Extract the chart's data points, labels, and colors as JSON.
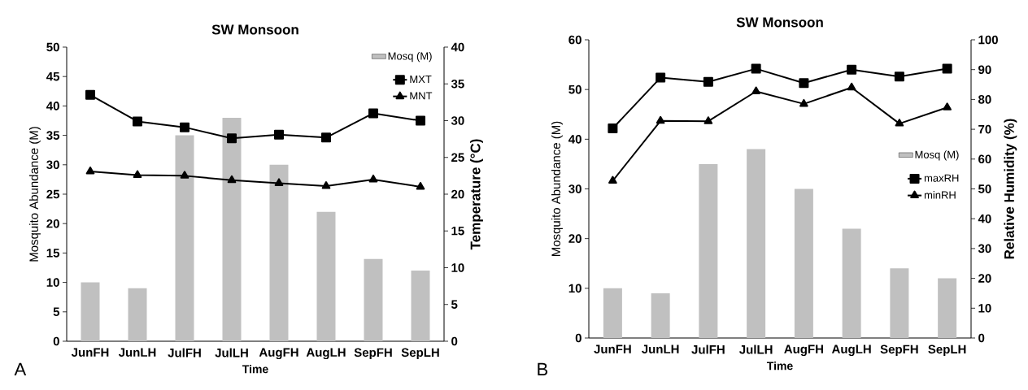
{
  "chart_data": [
    {
      "type": "bar",
      "title": "SW Monsoon",
      "xlabel": "Time",
      "ylabel": "Mosquito Abundance (M)",
      "y2label": "Temperature (°C)",
      "annotations": [
        "A"
      ],
      "legend": "top right",
      "categories": [
        "JunFH",
        "JunLH",
        "JulFH",
        "JulLH",
        "AugFH",
        "AugLH",
        "SepFH",
        "SepLH"
      ],
      "ylim": [
        0,
        50
      ],
      "yticks": [
        0,
        5,
        10,
        15,
        20,
        25,
        30,
        35,
        40,
        45,
        50
      ],
      "y2lim": [
        0,
        40
      ],
      "y2ticks": [
        0,
        5,
        10,
        15,
        20,
        25,
        30,
        35,
        40
      ],
      "series": [
        {
          "name": "Mosq (M)",
          "color": "#c0c0c0",
          "values": [
            10,
            9,
            35,
            38,
            30,
            22,
            14,
            12
          ]
        },
        {
          "name": "MXT",
          "type": "line",
          "axis": "y2",
          "marker": "square",
          "color": "#000000",
          "values": [
            33.5,
            29.9,
            29.1,
            27.6,
            28.1,
            27.7,
            31.0,
            30.0
          ]
        },
        {
          "name": "MNT",
          "type": "line",
          "axis": "y2",
          "marker": "triangle",
          "color": "#000000",
          "values": [
            23.1,
            22.6,
            22.5,
            21.9,
            21.5,
            21.1,
            22.0,
            21.0
          ]
        }
      ]
    },
    {
      "type": "bar",
      "title": "SW Monsoon",
      "xlabel": "Time",
      "ylabel": "Mosquito Abundance (M)",
      "y2label": "Relative Humidity (%)",
      "annotations": [
        "B"
      ],
      "legend": "right",
      "categories": [
        "JunFH",
        "JunLH",
        "JulFH",
        "JulLH",
        "AugFH",
        "AugLH",
        "SepFH",
        "SepLH"
      ],
      "ylim": [
        0,
        60
      ],
      "yticks": [
        0,
        10,
        20,
        30,
        40,
        50,
        60
      ],
      "y2lim": [
        0,
        100
      ],
      "y2ticks": [
        0,
        10,
        20,
        30,
        40,
        50,
        60,
        70,
        80,
        90,
        100
      ],
      "series": [
        {
          "name": "Mosq (M)",
          "color": "#c0c0c0",
          "values": [
            10,
            9,
            35,
            38,
            30,
            22,
            14,
            12
          ]
        },
        {
          "name": "maxRH",
          "type": "line",
          "axis": "y2",
          "marker": "square",
          "color": "#000000",
          "values": [
            70.3,
            87.3,
            85.9,
            90.3,
            85.5,
            90.0,
            87.7,
            90.3
          ]
        },
        {
          "name": "minRH",
          "type": "line",
          "axis": "y2",
          "marker": "triangle",
          "color": "#000000",
          "values": [
            52.7,
            72.8,
            72.7,
            82.7,
            78.5,
            84.0,
            71.9,
            77.3
          ]
        }
      ]
    }
  ]
}
